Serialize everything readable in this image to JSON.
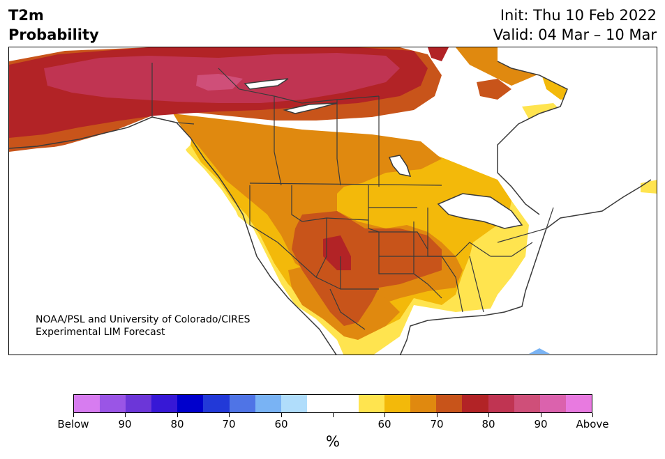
{
  "title_line1": "T2m",
  "title_line2": "Probability",
  "init": "Init: Thu 10 Feb 2022",
  "valid": "Valid: 04 Mar – 10 Mar",
  "credit_line1": "NOAA/PSL and University of Colorado/CIRES",
  "credit_line2": "Experimental LIM Forecast",
  "colorbar": {
    "colors": [
      "#d77cf0",
      "#9a55e6",
      "#6c36d8",
      "#3718d6",
      "#0000cc",
      "#2239d8",
      "#4f74e6",
      "#79b3f4",
      "#b0ddfb",
      "#ffffff",
      "#ffffff",
      "#ffe44f",
      "#f3b90a",
      "#e0890f",
      "#c8541a",
      "#b22326",
      "#c03452",
      "#cf4f79",
      "#db62ad",
      "#e87ae0"
    ],
    "tick_labels": [
      "Below",
      "90",
      "80",
      "70",
      "60",
      "",
      "60",
      "70",
      "80",
      "90",
      "Above"
    ],
    "unit": "%"
  },
  "legend_colors": {
    "above_50": "#ffe44f",
    "above_60": "#f3b90a",
    "above_70": "#e0890f",
    "above_80": "#c8541a",
    "above_90": "#b22326",
    "above_95": "#c03452",
    "above_99": "#cf4f79",
    "below_60": "#79b3f4"
  }
}
